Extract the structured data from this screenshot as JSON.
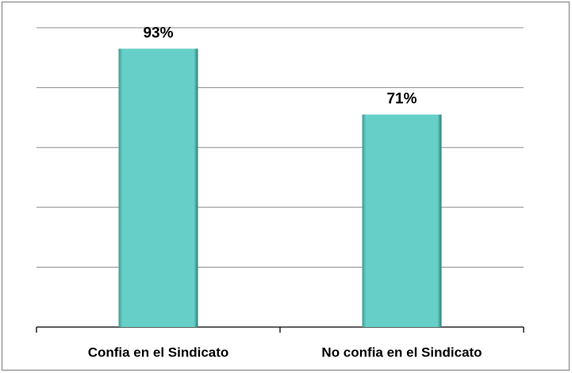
{
  "chart_data": {
    "type": "bar",
    "categories": [
      "Confia en el Sindicato",
      "No confia en el Sindicato"
    ],
    "values": [
      93,
      71
    ],
    "value_labels": [
      "93%",
      "71%"
    ],
    "color": "#66d0c8",
    "ylim": [
      0,
      100
    ],
    "yticks": [
      0,
      20,
      40,
      60,
      80,
      100
    ],
    "grid": true
  }
}
